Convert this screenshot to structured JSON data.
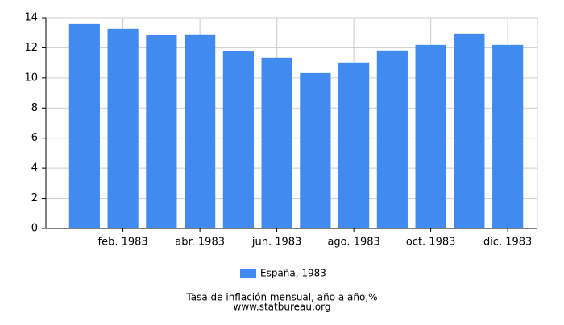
{
  "chart_data": {
    "type": "bar",
    "title": "Tasa de inflación mensual, año a año,%",
    "source": "www.statbureau.org",
    "categories": [
      null,
      "feb. 1983",
      null,
      "abr. 1983",
      null,
      "jun. 1983",
      null,
      "ago. 1983",
      null,
      "oct. 1983",
      null,
      "dic. 1983"
    ],
    "series": [
      {
        "name": "España, 1983",
        "color": "#418bf0",
        "values": [
          13.58,
          13.26,
          12.83,
          12.89,
          11.76,
          11.34,
          10.32,
          11.02,
          11.82,
          12.19,
          12.94,
          12.19
        ]
      }
    ],
    "ylim": [
      0,
      14
    ],
    "yticks": [
      0,
      2,
      4,
      6,
      8,
      10,
      12,
      14
    ],
    "grid": true,
    "legend": "bottom"
  }
}
